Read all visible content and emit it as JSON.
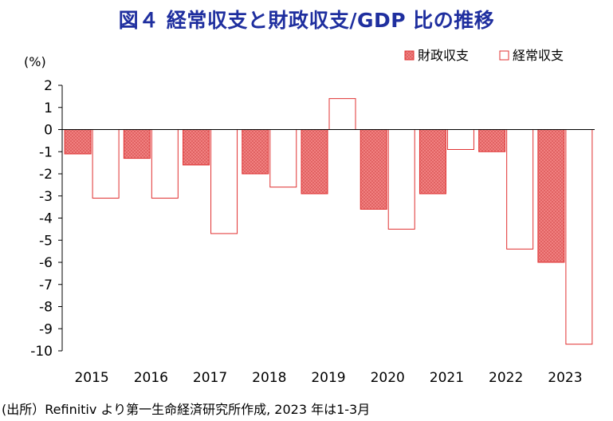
{
  "title": "図４ 経常収支と財政収支/GDP 比の推移",
  "source": "(出所）Refinitiv より第一生命経済研究所作成, 2023 年は1-3月",
  "colors": {
    "fiscal_fill": "#f08080",
    "fiscal_stroke": "#e03030",
    "current_fill": "#ffffff",
    "current_stroke": "#e03030",
    "axis": "#000000",
    "title": "#1f2f9f"
  },
  "chart_data": {
    "type": "bar",
    "categories": [
      "2015",
      "2016",
      "2017",
      "2018",
      "2019",
      "2020",
      "2021",
      "2022",
      "2023"
    ],
    "series": [
      {
        "name": "財政収支",
        "values": [
          -1.1,
          -1.3,
          -1.6,
          -2.0,
          -2.9,
          -3.6,
          -2.9,
          -1.0,
          -6.0
        ]
      },
      {
        "name": "経常収支",
        "values": [
          -3.1,
          -3.1,
          -4.7,
          -2.6,
          1.4,
          -4.5,
          -0.9,
          -5.4,
          -9.7
        ]
      }
    ],
    "ylabel": "(%)",
    "ylim": [
      -10,
      2
    ],
    "yticks": [
      2,
      1,
      0,
      -1,
      -2,
      -3,
      -4,
      -5,
      -6,
      -7,
      -8,
      -9,
      -10
    ],
    "legend": "top-right",
    "grid": false
  }
}
